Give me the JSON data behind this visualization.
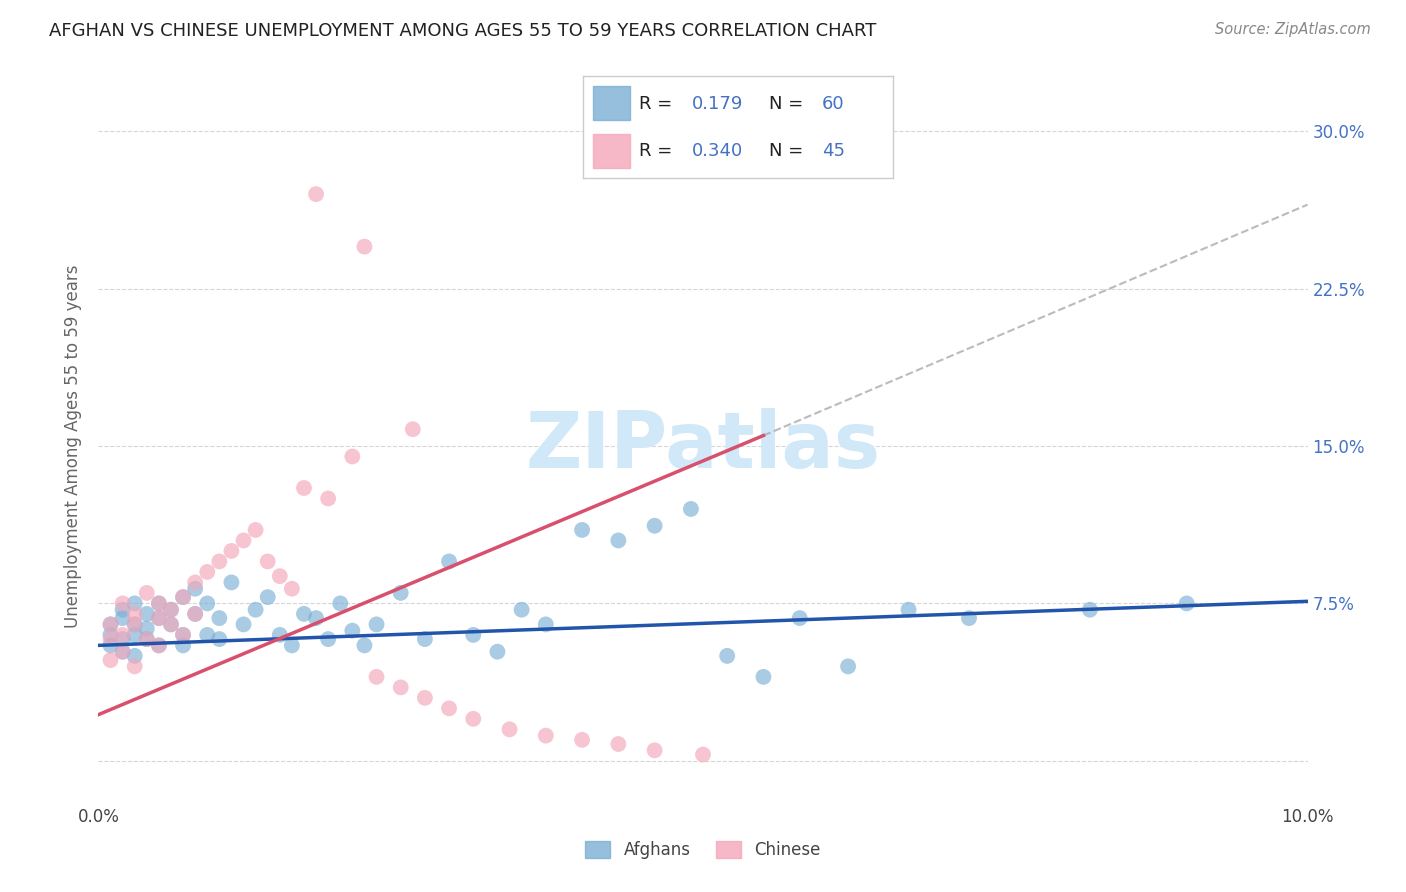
{
  "title": "AFGHAN VS CHINESE UNEMPLOYMENT AMONG AGES 55 TO 59 YEARS CORRELATION CHART",
  "source": "Source: ZipAtlas.com",
  "ylabel": "Unemployment Among Ages 55 to 59 years",
  "xlim": [
    0.0,
    0.1
  ],
  "ylim": [
    -0.02,
    0.32
  ],
  "afghan_R": "0.179",
  "afghan_N": "60",
  "chinese_R": "0.340",
  "chinese_N": "45",
  "afghan_color": "#7bafd4",
  "chinese_color": "#f4a7b9",
  "afghan_line_color": "#2255aa",
  "chinese_line_color": "#d94f6e",
  "watermark_color": "#d0e8f8",
  "background_color": "#ffffff",
  "grid_color": "#cccccc",
  "title_color": "#222222",
  "axis_label_color": "#666666",
  "right_tick_color": "#4472c4",
  "afghan_line_x0": 0.0,
  "afghan_line_y0": 0.055,
  "afghan_line_x1": 0.1,
  "afghan_line_y1": 0.076,
  "chinese_line_x0": 0.0,
  "chinese_line_y0": 0.022,
  "chinese_line_x1": 0.055,
  "chinese_line_y1": 0.155,
  "dashed_line_x0": 0.055,
  "dashed_line_y0": 0.155,
  "dashed_line_x1": 0.1,
  "dashed_line_y1": 0.265,
  "afghan_x": [
    0.001,
    0.001,
    0.001,
    0.002,
    0.002,
    0.002,
    0.002,
    0.003,
    0.003,
    0.003,
    0.003,
    0.004,
    0.004,
    0.004,
    0.005,
    0.005,
    0.005,
    0.006,
    0.006,
    0.007,
    0.007,
    0.007,
    0.008,
    0.008,
    0.009,
    0.009,
    0.01,
    0.01,
    0.011,
    0.012,
    0.013,
    0.014,
    0.015,
    0.016,
    0.017,
    0.018,
    0.019,
    0.02,
    0.021,
    0.022,
    0.023,
    0.025,
    0.027,
    0.029,
    0.031,
    0.033,
    0.035,
    0.037,
    0.04,
    0.043,
    0.046,
    0.049,
    0.052,
    0.055,
    0.058,
    0.062,
    0.067,
    0.072,
    0.082,
    0.09
  ],
  "afghan_y": [
    0.06,
    0.055,
    0.065,
    0.058,
    0.068,
    0.072,
    0.052,
    0.06,
    0.065,
    0.05,
    0.075,
    0.058,
    0.07,
    0.063,
    0.068,
    0.075,
    0.055,
    0.065,
    0.072,
    0.06,
    0.078,
    0.055,
    0.082,
    0.07,
    0.06,
    0.075,
    0.068,
    0.058,
    0.085,
    0.065,
    0.072,
    0.078,
    0.06,
    0.055,
    0.07,
    0.068,
    0.058,
    0.075,
    0.062,
    0.055,
    0.065,
    0.08,
    0.058,
    0.095,
    0.06,
    0.052,
    0.072,
    0.065,
    0.11,
    0.105,
    0.112,
    0.12,
    0.05,
    0.04,
    0.068,
    0.045,
    0.072,
    0.068,
    0.072,
    0.075
  ],
  "chinese_x": [
    0.001,
    0.001,
    0.001,
    0.002,
    0.002,
    0.002,
    0.003,
    0.003,
    0.003,
    0.004,
    0.004,
    0.005,
    0.005,
    0.005,
    0.006,
    0.006,
    0.007,
    0.007,
    0.008,
    0.008,
    0.009,
    0.01,
    0.011,
    0.012,
    0.013,
    0.014,
    0.015,
    0.016,
    0.017,
    0.019,
    0.021,
    0.023,
    0.025,
    0.027,
    0.029,
    0.031,
    0.034,
    0.037,
    0.04,
    0.043,
    0.046,
    0.05,
    0.018,
    0.022,
    0.026
  ],
  "chinese_y": [
    0.065,
    0.058,
    0.048,
    0.075,
    0.06,
    0.052,
    0.07,
    0.065,
    0.045,
    0.08,
    0.058,
    0.068,
    0.075,
    0.055,
    0.072,
    0.065,
    0.078,
    0.06,
    0.085,
    0.07,
    0.09,
    0.095,
    0.1,
    0.105,
    0.11,
    0.095,
    0.088,
    0.082,
    0.13,
    0.125,
    0.145,
    0.04,
    0.035,
    0.03,
    0.025,
    0.02,
    0.015,
    0.012,
    0.01,
    0.008,
    0.005,
    0.003,
    0.27,
    0.245,
    0.158
  ]
}
